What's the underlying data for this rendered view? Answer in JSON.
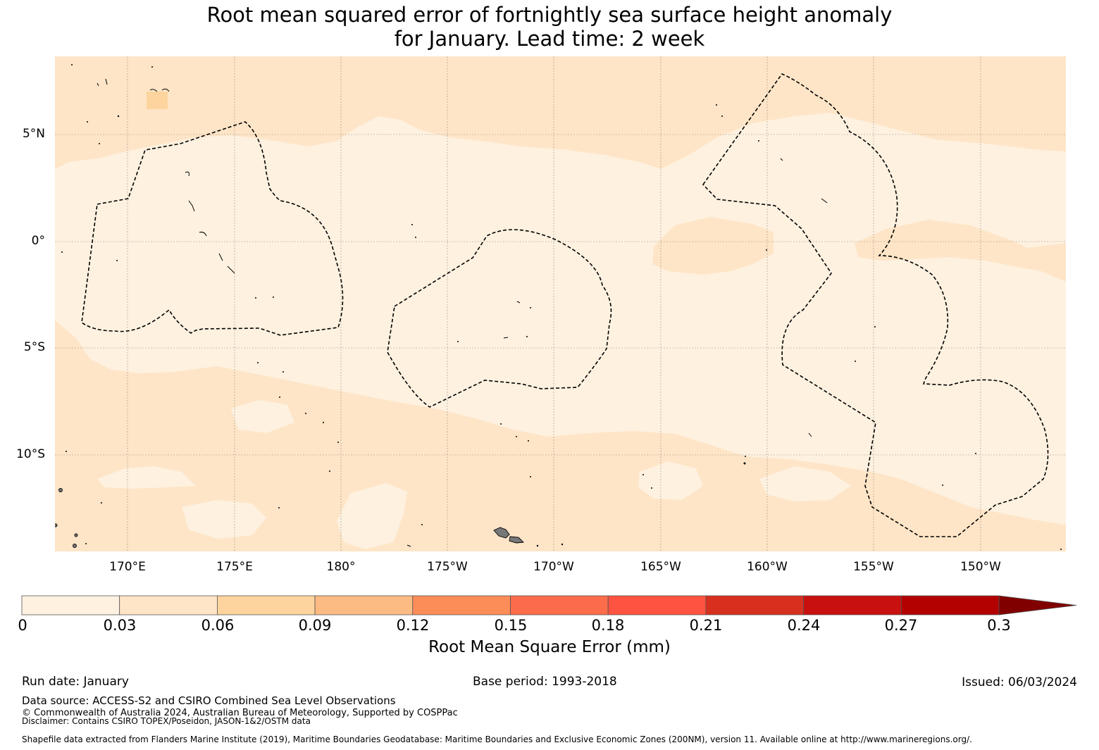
{
  "title": {
    "line1": "Root mean squared error of fortnightly sea surface height anomaly",
    "line2": "for January. Lead time: 2 week"
  },
  "axes": {
    "lat_labels": [
      "5°N",
      "0°",
      "5°S",
      "10°S"
    ],
    "lon_labels": [
      "170°E",
      "175°E",
      "180°",
      "175°W",
      "170°W",
      "165°W",
      "160°W",
      "155°W",
      "150°W"
    ]
  },
  "colors": {
    "levels": [
      "#fef1e0",
      "#fee5c7",
      "#fdd49e",
      "#fdbb84",
      "#fc8d59",
      "#fc6c4a",
      "#fe5340",
      "#d7301f",
      "#c8100e",
      "#b30000",
      "#800000"
    ],
    "dashed_boundary": "#000000"
  },
  "colorbar": {
    "ticks": [
      "0",
      "0.03",
      "0.06",
      "0.09",
      "0.12",
      "0.15",
      "0.18",
      "0.21",
      "0.24",
      "0.27",
      "0.3"
    ],
    "label": "Root Mean Square Error (mm)"
  },
  "footer": {
    "run_date": "Run date: January",
    "base_period": "Base period: 1993-2018",
    "issued": "Issued: 06/03/2024",
    "data_source": "Data source: ACCESS-S2 and CSIRO Combined Sea Level Observations",
    "copyright": "© Commonwealth of Australia 2024, Australian Bureau of Meteorology, Supported by COSPPac",
    "disclaimer": "Disclaimer: Contains CSIRO TOPEX/Poseidon, JASON-1&2/OSTM data",
    "shapefile": "Shapefile data extracted from Flanders Marine Institute (2019), Maritime Boundaries Geodatabase: Maritime Boundaries and Exclusive Economic Zones (200NM), version 11. Available online at http://www.marineregions.org/."
  }
}
